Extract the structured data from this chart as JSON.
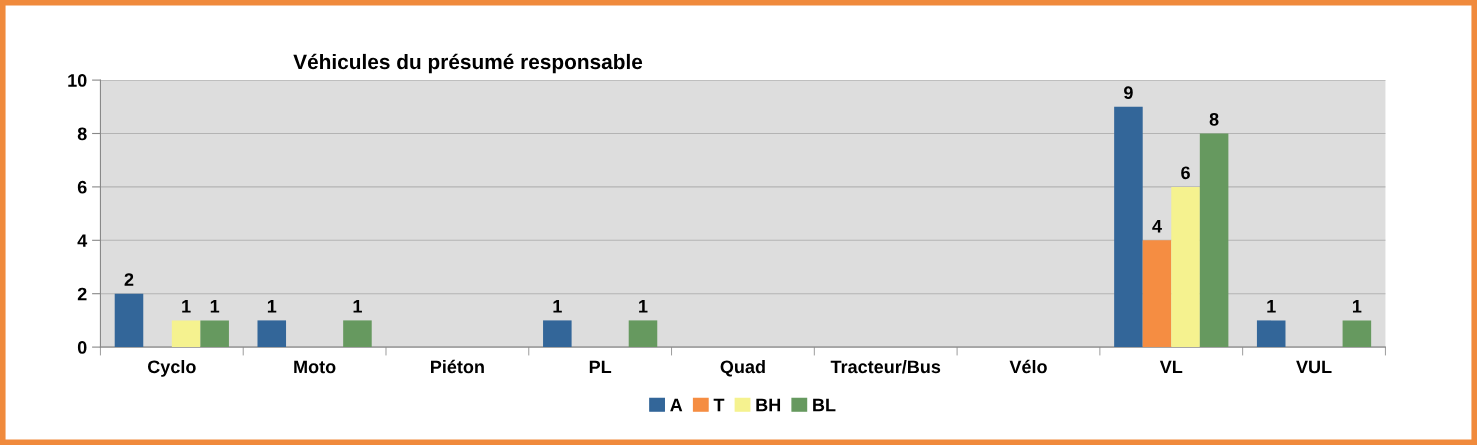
{
  "chart_data": {
    "type": "bar",
    "title": "Véhicules du présumé responsable",
    "categories": [
      "Cyclo",
      "Moto",
      "Piéton",
      "PL",
      "Quad",
      "Tracteur/Bus",
      "Vélo",
      "VL",
      "VUL"
    ],
    "series": [
      {
        "name": "A",
        "color": "#336699",
        "values": [
          2,
          1,
          null,
          1,
          null,
          null,
          null,
          9,
          1
        ]
      },
      {
        "name": "T",
        "color": "#f58d42",
        "values": [
          null,
          null,
          null,
          null,
          null,
          null,
          null,
          4,
          null
        ]
      },
      {
        "name": "BH",
        "color": "#f5f28f",
        "values": [
          1,
          null,
          null,
          null,
          null,
          null,
          null,
          6,
          null
        ]
      },
      {
        "name": "BL",
        "color": "#66995f",
        "values": [
          1,
          1,
          null,
          1,
          null,
          null,
          null,
          8,
          1
        ]
      }
    ],
    "ylim": [
      0,
      10
    ],
    "yticks": [
      0,
      2,
      4,
      6,
      8,
      10
    ],
    "grid": "y",
    "legend": "bottom",
    "data_labels": true
  }
}
